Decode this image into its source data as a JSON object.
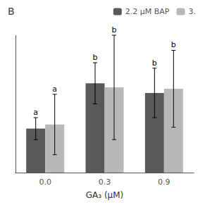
{
  "chart_data": {
    "type": "bar",
    "title": "B",
    "xlabel": "GA₃ (μM)",
    "categories": [
      "0.0",
      "0.3",
      "0.9"
    ],
    "series": [
      {
        "name": "2.2 μM BAP",
        "color": "#595959",
        "values": [
          3.2,
          6.5,
          5.8
        ],
        "errors": [
          0.8,
          1.5,
          1.8
        ],
        "annotations": [
          "a",
          "b",
          "b"
        ]
      },
      {
        "name": "3.",
        "color": "#b8b8b8",
        "values": [
          3.5,
          6.2,
          6.1
        ],
        "errors": [
          2.2,
          3.8,
          2.8
        ],
        "annotations": [
          "a",
          "b",
          "b"
        ]
      }
    ],
    "ylim": [
      0,
      10
    ],
    "grid": false,
    "legend": "top",
    "tick_labels": "x"
  }
}
